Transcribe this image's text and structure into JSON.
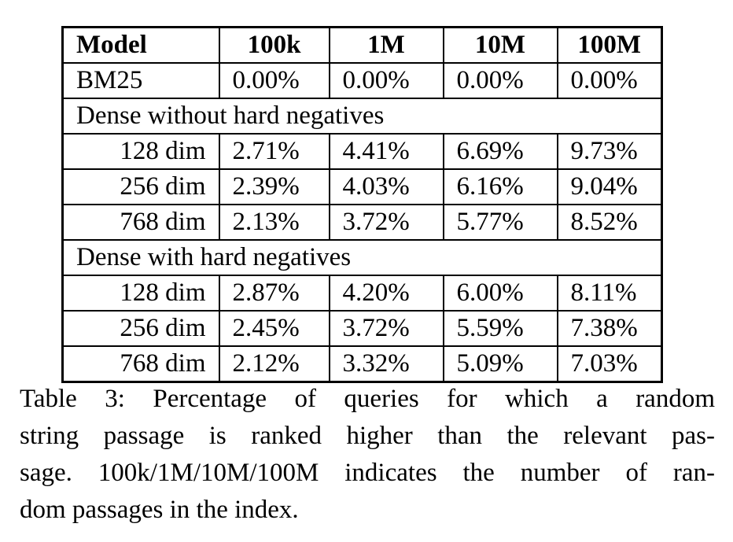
{
  "table": {
    "columns": [
      "Model",
      "100k",
      "1M",
      "10M",
      "100M"
    ],
    "rows": [
      {
        "type": "data",
        "label_align": "left",
        "cells": [
          "BM25",
          "0.00%",
          "0.00%",
          "0.00%",
          "0.00%"
        ]
      },
      {
        "type": "section",
        "label": "Dense without hard negatives"
      },
      {
        "type": "data",
        "label_align": "right",
        "cells": [
          "128 dim",
          "2.71%",
          "4.41%",
          "6.69%",
          "9.73%"
        ]
      },
      {
        "type": "data",
        "label_align": "right",
        "cells": [
          "256 dim",
          "2.39%",
          "4.03%",
          "6.16%",
          "9.04%"
        ]
      },
      {
        "type": "data",
        "label_align": "right",
        "cells": [
          "768 dim",
          "2.13%",
          "3.72%",
          "5.77%",
          "8.52%"
        ]
      },
      {
        "type": "section",
        "label": "Dense with hard negatives"
      },
      {
        "type": "data",
        "label_align": "right",
        "cells": [
          "128 dim",
          "2.87%",
          "4.20%",
          "6.00%",
          "8.11%"
        ]
      },
      {
        "type": "data",
        "label_align": "right",
        "cells": [
          "256 dim",
          "2.45%",
          "3.72%",
          "5.59%",
          "7.38%"
        ]
      },
      {
        "type": "data",
        "label_align": "right",
        "cells": [
          "768 dim",
          "2.12%",
          "3.32%",
          "5.09%",
          "7.03%"
        ]
      }
    ]
  },
  "caption": {
    "lines": [
      "Table 3:  Percentage of queries for which a random",
      "string passage is ranked higher than the relevant pas-",
      "sage. 100k/1M/10M/100M indicates the number of ran-",
      "dom passages in the index."
    ]
  },
  "colors": {
    "background": "#ffffff",
    "text": "#000000",
    "border": "#000000"
  }
}
